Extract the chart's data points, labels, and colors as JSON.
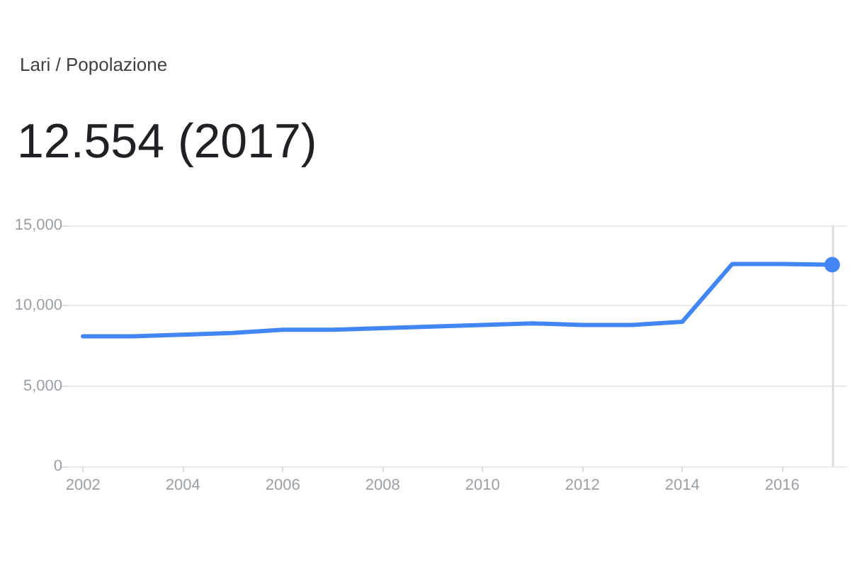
{
  "chart_data": {
    "type": "line",
    "title": "12.554 (2017)",
    "subtitle": "Lari / Popolazione",
    "series": [
      {
        "color": "#4285f4",
        "x": [
          2002,
          2003,
          2004,
          2005,
          2006,
          2007,
          2008,
          2009,
          2010,
          2011,
          2012,
          2013,
          2014,
          2015,
          2016,
          2017
        ],
        "values": [
          8100,
          8100,
          8200,
          8300,
          8500,
          8500,
          8600,
          8700,
          8800,
          8900,
          8800,
          8800,
          9000,
          12600,
          12600,
          12554
        ]
      },
      {
        "type": "scatter",
        "color": "#4285f4",
        "marker": "circle",
        "x": [
          2017
        ],
        "values": [
          12554
        ]
      }
    ],
    "xlim": [
      2001.7,
      2017.3
    ],
    "xticks": [
      2002,
      2004,
      2006,
      2008,
      2010,
      2012,
      2014,
      2016
    ],
    "ylim": [
      0,
      15000
    ],
    "yticks": [
      0,
      {
        "value": 5000,
        "label": "5,000"
      },
      {
        "value": 10000,
        "label": "10,000"
      },
      {
        "value": 15000,
        "label": "15,000"
      }
    ],
    "grid": "y",
    "line_style": "solid",
    "ref_lines": [
      {
        "axis": "x",
        "value": 2017,
        "color": "#dadce0"
      }
    ]
  }
}
